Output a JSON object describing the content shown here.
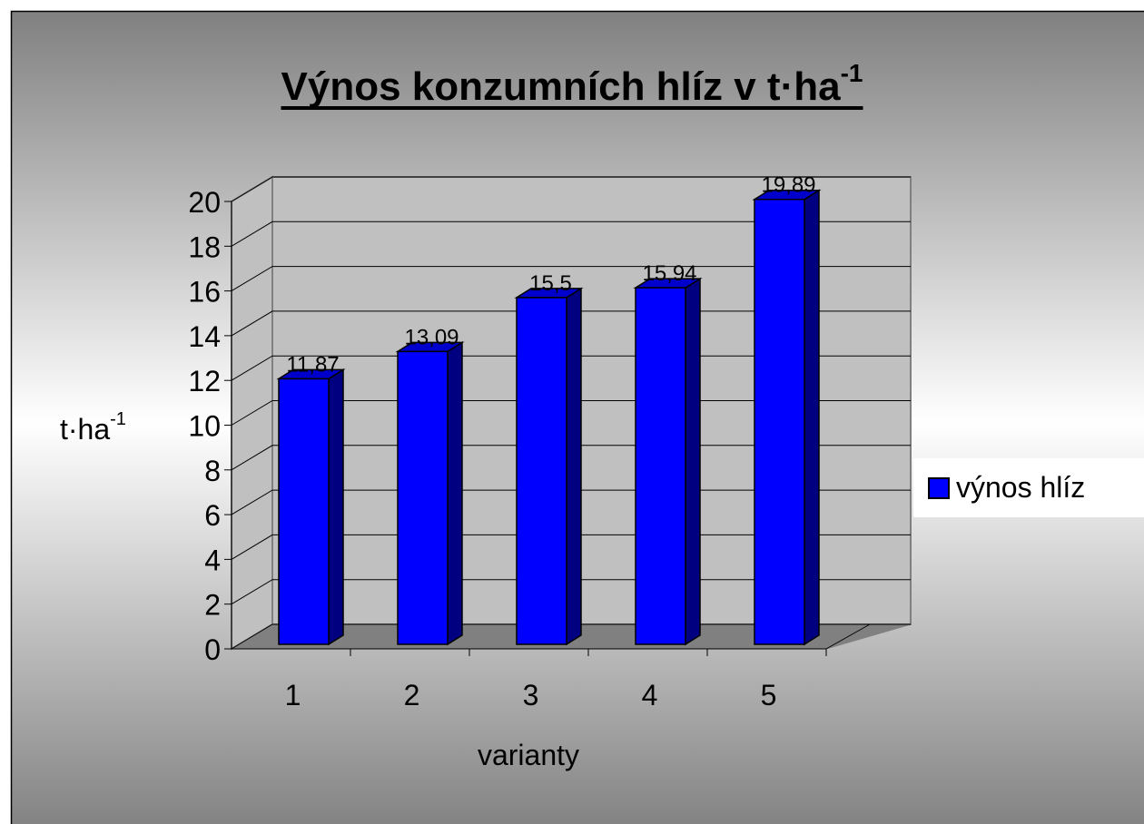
{
  "chart_data": {
    "type": "bar3d",
    "title": {
      "text": "Výnos konzumních hlíz v t·ha",
      "superscript": "-1"
    },
    "y_axis_label": {
      "text": "t·ha",
      "superscript": "-1"
    },
    "x_axis_label": "varianty",
    "categories": [
      "1",
      "2",
      "3",
      "4",
      "5"
    ],
    "series": [
      {
        "name": "výnos hlíz",
        "color": "#0000ff",
        "values": [
          11.87,
          13.09,
          15.5,
          15.94,
          19.89
        ],
        "value_labels": [
          "11,87",
          "13,09",
          "15,5",
          "15,94",
          "19,89"
        ]
      }
    ],
    "ylim": [
      0,
      20
    ],
    "yticks": [
      0,
      2,
      4,
      6,
      8,
      10,
      12,
      14,
      16,
      18,
      20
    ],
    "grid": true,
    "legend": "right"
  }
}
